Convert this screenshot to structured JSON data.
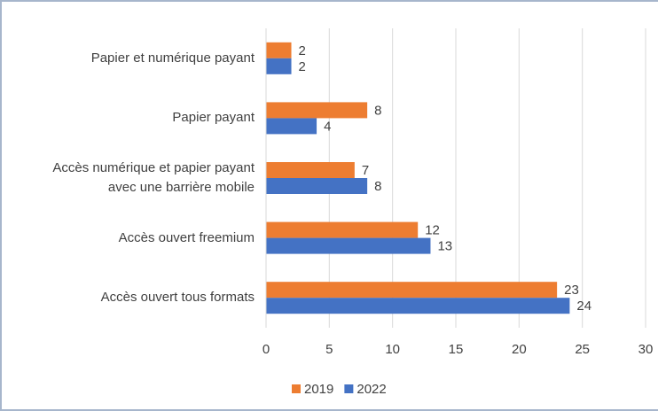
{
  "chart_data": {
    "type": "hbar",
    "categories": [
      "Papier et numérique payant",
      "Papier payant",
      "Accès numérique et papier payant avec une barrière mobile",
      "Accès ouvert freemium",
      "Accès ouvert tous formats"
    ],
    "series": [
      {
        "name": "2019",
        "color": "#ed7d31",
        "values": [
          2,
          8,
          7,
          12,
          23
        ]
      },
      {
        "name": "2022",
        "color": "#4472c4",
        "values": [
          2,
          4,
          8,
          13,
          24
        ]
      }
    ],
    "xlim": [
      0,
      30
    ],
    "xticks": [
      0,
      5,
      10,
      15,
      20,
      25,
      30
    ],
    "grid": true,
    "legend": "bottom"
  }
}
